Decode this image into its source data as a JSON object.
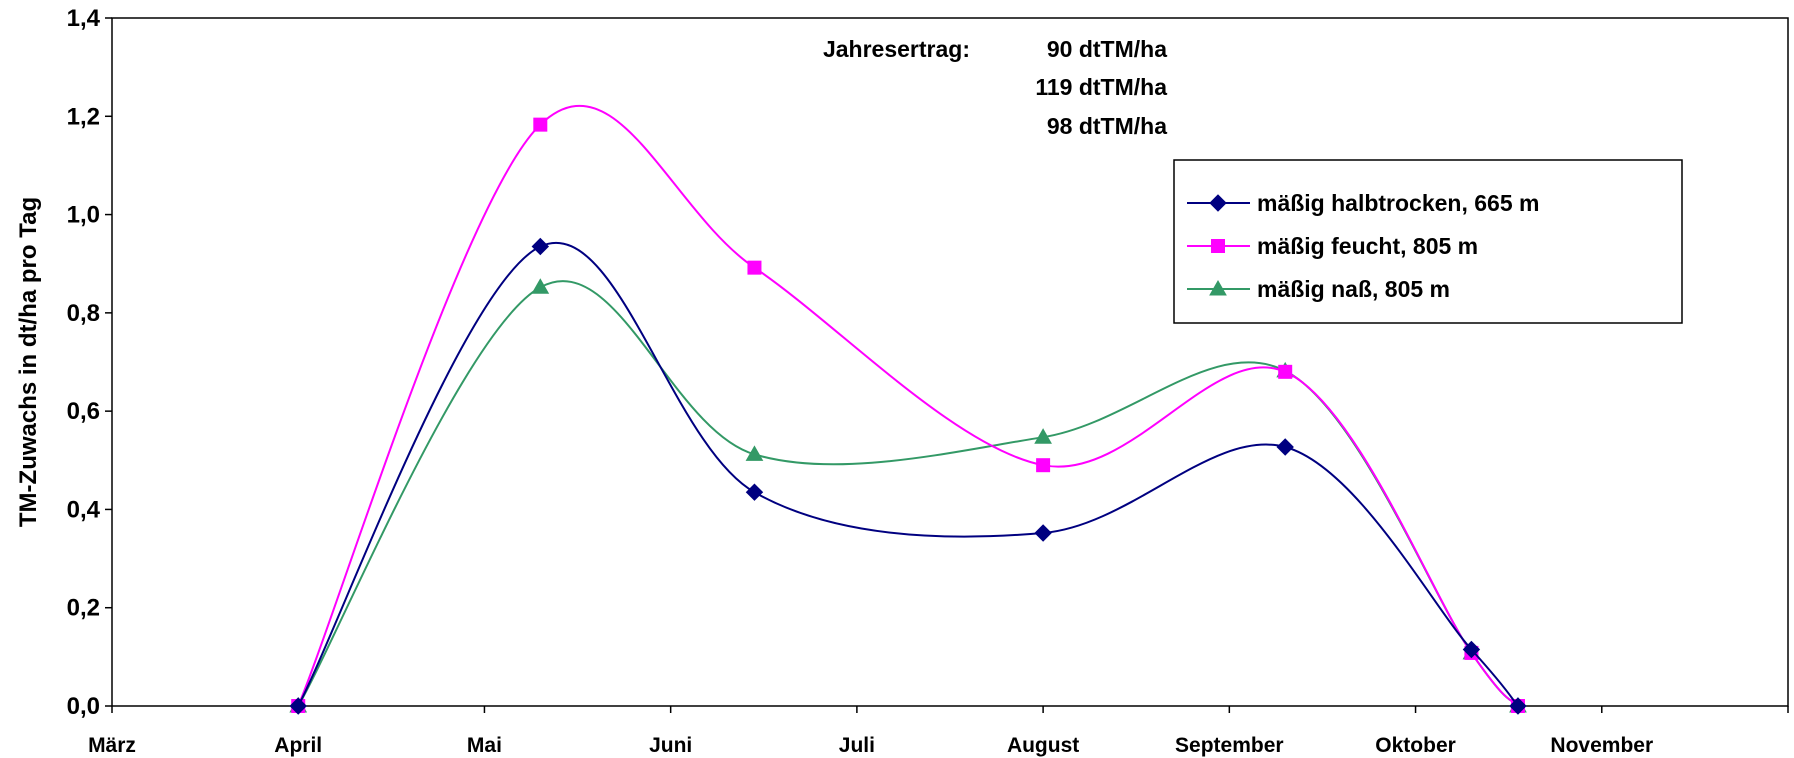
{
  "chart_data": {
    "type": "line",
    "title": "",
    "xlabel": "",
    "ylabel": "TM-Zuwachs in dt/ha pro Tag",
    "ylim": [
      0,
      1.4
    ],
    "yticks": [
      "0,0",
      "0,2",
      "0,4",
      "0,6",
      "0,8",
      "1,0",
      "1,2",
      "1,4"
    ],
    "xlim": [
      0,
      9
    ],
    "categories": [
      "März",
      "April",
      "Mai",
      "Juni",
      "Juli",
      "August",
      "September",
      "Oktober",
      "November"
    ],
    "grid": false,
    "legend_position": "upper-right",
    "annotations": {
      "label": "Jahresertrag:",
      "values": [
        "90 dtTM/ha",
        "119 dtTM/ha",
        "98 dtTM/ha"
      ]
    },
    "series": [
      {
        "name": "mäßig  halbtrocken, 665 m",
        "color": "#000080",
        "marker": "diamond",
        "x": [
          1.0,
          2.3,
          3.45,
          5.0,
          6.3,
          7.3,
          7.55
        ],
        "y": [
          0.0,
          0.935,
          0.435,
          0.352,
          0.527,
          0.115,
          0.0
        ]
      },
      {
        "name": "mäßig feucht, 805 m",
        "color": "#FF00FF",
        "marker": "square",
        "x": [
          1.0,
          2.3,
          3.45,
          5.0,
          6.3,
          7.3,
          7.55
        ],
        "y": [
          0.0,
          1.183,
          0.892,
          0.49,
          0.68,
          0.108,
          0.0
        ]
      },
      {
        "name": "mäßig naß, 805 m",
        "color": "#339966",
        "marker": "triangle",
        "x": [
          1.0,
          2.3,
          3.45,
          5.0,
          6.3,
          7.3,
          7.55
        ],
        "y": [
          0.0,
          0.852,
          0.512,
          0.547,
          0.682,
          0.108,
          0.0
        ]
      }
    ]
  }
}
